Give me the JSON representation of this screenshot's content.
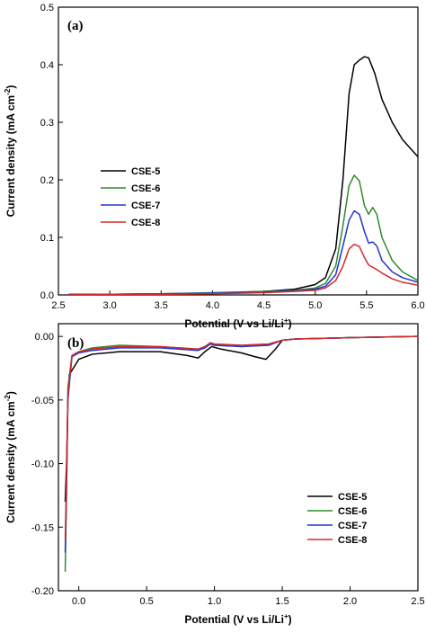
{
  "chart_data": [
    {
      "type": "line",
      "panel_label": "(a)",
      "xlabel": "Potential (V vs Li/Li",
      "xlabel_sup": "+",
      "xlabel_end": ")",
      "ylabel": "Current density (mA cm",
      "ylabel_sup": "-2",
      "ylabel_end": ")",
      "xlim": [
        2.5,
        6.0
      ],
      "ylim": [
        0.0,
        0.5
      ],
      "x_ticks": [
        "2.5",
        "3.0",
        "3.5",
        "4.0",
        "4.5",
        "5.0",
        "5.5",
        "6.0"
      ],
      "x_tick_values": [
        2.5,
        3.0,
        3.5,
        4.0,
        4.5,
        5.0,
        5.5,
        6.0
      ],
      "y_ticks": [
        "0.0",
        "0.1",
        "0.2",
        "0.3",
        "0.4",
        "0.5"
      ],
      "y_tick_values": [
        0.0,
        0.1,
        0.2,
        0.3,
        0.4,
        0.5
      ],
      "legend_position": "center-left",
      "series": [
        {
          "name": "CSE-5",
          "color": "#000000",
          "points": [
            [
              2.6,
              0.001
            ],
            [
              3.0,
              0.001
            ],
            [
              3.5,
              0.002
            ],
            [
              4.0,
              0.003
            ],
            [
              4.5,
              0.006
            ],
            [
              4.8,
              0.01
            ],
            [
              5.0,
              0.018
            ],
            [
              5.1,
              0.03
            ],
            [
              5.2,
              0.08
            ],
            [
              5.27,
              0.2
            ],
            [
              5.33,
              0.35
            ],
            [
              5.38,
              0.4
            ],
            [
              5.43,
              0.408
            ],
            [
              5.48,
              0.414
            ],
            [
              5.52,
              0.412
            ],
            [
              5.58,
              0.385
            ],
            [
              5.65,
              0.34
            ],
            [
              5.75,
              0.3
            ],
            [
              5.85,
              0.27
            ],
            [
              6.0,
              0.24
            ]
          ]
        },
        {
          "name": "CSE-6",
          "color": "#2e8b2e",
          "points": [
            [
              2.6,
              0.0
            ],
            [
              3.0,
              0.001
            ],
            [
              3.5,
              0.002
            ],
            [
              4.0,
              0.004
            ],
            [
              4.5,
              0.006
            ],
            [
              4.8,
              0.008
            ],
            [
              5.0,
              0.012
            ],
            [
              5.1,
              0.02
            ],
            [
              5.2,
              0.05
            ],
            [
              5.27,
              0.12
            ],
            [
              5.33,
              0.19
            ],
            [
              5.38,
              0.208
            ],
            [
              5.43,
              0.198
            ],
            [
              5.48,
              0.155
            ],
            [
              5.52,
              0.14
            ],
            [
              5.56,
              0.152
            ],
            [
              5.6,
              0.14
            ],
            [
              5.65,
              0.1
            ],
            [
              5.75,
              0.06
            ],
            [
              5.85,
              0.04
            ],
            [
              6.0,
              0.025
            ]
          ]
        },
        {
          "name": "CSE-7",
          "color": "#1f35d6",
          "points": [
            [
              2.6,
              0.0
            ],
            [
              3.0,
              0.001
            ],
            [
              3.5,
              0.002
            ],
            [
              4.0,
              0.003
            ],
            [
              4.5,
              0.005
            ],
            [
              4.8,
              0.007
            ],
            [
              5.0,
              0.01
            ],
            [
              5.1,
              0.015
            ],
            [
              5.2,
              0.035
            ],
            [
              5.27,
              0.085
            ],
            [
              5.33,
              0.13
            ],
            [
              5.38,
              0.146
            ],
            [
              5.43,
              0.14
            ],
            [
              5.48,
              0.11
            ],
            [
              5.52,
              0.09
            ],
            [
              5.56,
              0.092
            ],
            [
              5.6,
              0.085
            ],
            [
              5.65,
              0.06
            ],
            [
              5.75,
              0.04
            ],
            [
              5.85,
              0.03
            ],
            [
              6.0,
              0.022
            ]
          ]
        },
        {
          "name": "CSE-8",
          "color": "#d42a2a",
          "points": [
            [
              2.6,
              0.0
            ],
            [
              3.0,
              0.001
            ],
            [
              3.5,
              0.001
            ],
            [
              4.0,
              0.002
            ],
            [
              4.5,
              0.004
            ],
            [
              4.8,
              0.006
            ],
            [
              5.0,
              0.008
            ],
            [
              5.1,
              0.012
            ],
            [
              5.2,
              0.025
            ],
            [
              5.27,
              0.05
            ],
            [
              5.33,
              0.08
            ],
            [
              5.38,
              0.088
            ],
            [
              5.43,
              0.084
            ],
            [
              5.48,
              0.065
            ],
            [
              5.52,
              0.052
            ],
            [
              5.56,
              0.048
            ],
            [
              5.6,
              0.044
            ],
            [
              5.65,
              0.038
            ],
            [
              5.75,
              0.028
            ],
            [
              5.85,
              0.022
            ],
            [
              6.0,
              0.017
            ]
          ]
        }
      ]
    },
    {
      "type": "line",
      "panel_label": "(b)",
      "xlabel": "Potential (V vs Li/Li",
      "xlabel_sup": "+",
      "xlabel_end": ")",
      "ylabel": "Current density (mA cm",
      "ylabel_sup": "-2",
      "ylabel_end": ")",
      "xlim": [
        -0.15,
        2.5
      ],
      "ylim": [
        -0.2,
        0.01
      ],
      "x_ticks": [
        "0.0",
        "0.5",
        "1.0",
        "1.5",
        "2.0",
        "2.5"
      ],
      "x_tick_values": [
        0.0,
        0.5,
        1.0,
        1.5,
        2.0,
        2.5
      ],
      "y_ticks": [
        "0.00",
        "-0.05",
        "-0.10",
        "-0.15",
        "-0.20"
      ],
      "y_tick_values": [
        0.0,
        -0.05,
        -0.1,
        -0.15,
        -0.2
      ],
      "legend_position": "bottom-right",
      "series": [
        {
          "name": "CSE-5",
          "color": "#000000",
          "points": [
            [
              2.5,
              0.0
            ],
            [
              2.0,
              -0.001
            ],
            [
              1.6,
              -0.002
            ],
            [
              1.5,
              -0.003
            ],
            [
              1.45,
              -0.01
            ],
            [
              1.38,
              -0.018
            ],
            [
              1.3,
              -0.016
            ],
            [
              1.2,
              -0.013
            ],
            [
              1.05,
              -0.01
            ],
            [
              0.98,
              -0.008
            ],
            [
              0.93,
              -0.012
            ],
            [
              0.88,
              -0.017
            ],
            [
              0.8,
              -0.015
            ],
            [
              0.6,
              -0.012
            ],
            [
              0.3,
              -0.012
            ],
            [
              0.1,
              -0.014
            ],
            [
              0.0,
              -0.018
            ],
            [
              -0.04,
              -0.025
            ],
            [
              -0.07,
              -0.03
            ],
            [
              -0.08,
              -0.05
            ],
            [
              -0.09,
              -0.1
            ],
            [
              -0.1,
              -0.13
            ]
          ]
        },
        {
          "name": "CSE-6",
          "color": "#2e8b2e",
          "points": [
            [
              2.5,
              0.0
            ],
            [
              2.0,
              -0.001
            ],
            [
              1.6,
              -0.002
            ],
            [
              1.5,
              -0.003
            ],
            [
              1.4,
              -0.006
            ],
            [
              1.2,
              -0.007
            ],
            [
              1.0,
              -0.006
            ],
            [
              0.97,
              -0.005
            ],
            [
              0.93,
              -0.008
            ],
            [
              0.88,
              -0.01
            ],
            [
              0.6,
              -0.008
            ],
            [
              0.3,
              -0.007
            ],
            [
              0.1,
              -0.009
            ],
            [
              0.0,
              -0.012
            ],
            [
              -0.05,
              -0.015
            ],
            [
              -0.08,
              -0.04
            ],
            [
              -0.09,
              -0.12
            ],
            [
              -0.1,
              -0.185
            ]
          ]
        },
        {
          "name": "CSE-7",
          "color": "#1f35d6",
          "points": [
            [
              2.5,
              0.0
            ],
            [
              2.0,
              -0.001
            ],
            [
              1.6,
              -0.002
            ],
            [
              1.5,
              -0.003
            ],
            [
              1.4,
              -0.007
            ],
            [
              1.2,
              -0.008
            ],
            [
              1.0,
              -0.007
            ],
            [
              0.97,
              -0.006
            ],
            [
              0.93,
              -0.009
            ],
            [
              0.88,
              -0.011
            ],
            [
              0.6,
              -0.009
            ],
            [
              0.3,
              -0.009
            ],
            [
              0.1,
              -0.011
            ],
            [
              0.0,
              -0.013
            ],
            [
              -0.05,
              -0.016
            ],
            [
              -0.08,
              -0.05
            ],
            [
              -0.09,
              -0.12
            ],
            [
              -0.1,
              -0.17
            ]
          ]
        },
        {
          "name": "CSE-8",
          "color": "#d42a2a",
          "points": [
            [
              2.5,
              0.0
            ],
            [
              2.0,
              -0.001
            ],
            [
              1.6,
              -0.002
            ],
            [
              1.5,
              -0.003
            ],
            [
              1.4,
              -0.006
            ],
            [
              1.2,
              -0.007
            ],
            [
              1.0,
              -0.006
            ],
            [
              0.97,
              -0.005
            ],
            [
              0.93,
              -0.008
            ],
            [
              0.88,
              -0.01
            ],
            [
              0.6,
              -0.008
            ],
            [
              0.3,
              -0.008
            ],
            [
              0.1,
              -0.01
            ],
            [
              0.0,
              -0.012
            ],
            [
              -0.05,
              -0.015
            ],
            [
              -0.08,
              -0.045
            ],
            [
              -0.09,
              -0.11
            ],
            [
              -0.1,
              -0.16
            ]
          ]
        }
      ]
    }
  ]
}
